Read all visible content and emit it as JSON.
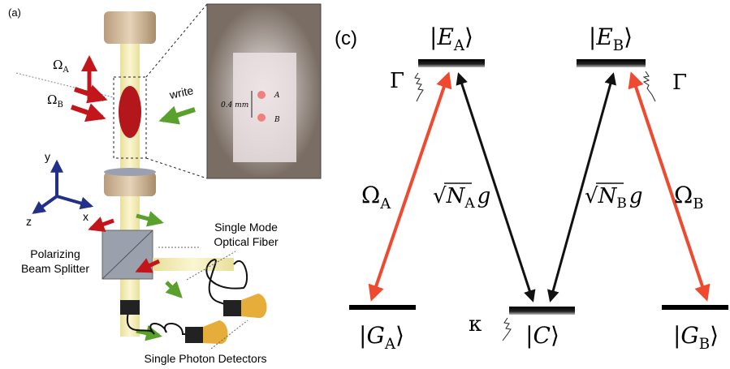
{
  "panel_a": {
    "label": "(a)",
    "omega_a": {
      "main": "Ω",
      "sub": "A"
    },
    "omega_b": {
      "main": "Ω",
      "sub": "B"
    },
    "write": "write",
    "scale": "0.4 mm",
    "site_a": "A",
    "site_b": "B",
    "axes": {
      "y": "y",
      "z": "z",
      "x": "x"
    },
    "fiber_label": [
      "Single Mode",
      "Optical Fiber"
    ],
    "splitter_label": [
      "Polarizing",
      "Beam Splitter"
    ],
    "detector_label": "Single Photon Detectors"
  },
  "panel_c": {
    "label": "(c)",
    "levels": [
      {
        "open": "|",
        "main": "E",
        "sub": "A",
        "close": "⟩"
      },
      {
        "open": "|",
        "main": "E",
        "sub": "B",
        "close": "⟩"
      },
      {
        "open": "|",
        "main": "G",
        "sub": "A",
        "close": "⟩"
      },
      {
        "open": "|",
        "main": "C",
        "sub": "",
        "close": "⟩"
      },
      {
        "open": "|",
        "main": "G",
        "sub": "B",
        "close": "⟩"
      }
    ],
    "decays": [
      "Γ",
      "Γ",
      "κ"
    ],
    "drives": [
      {
        "main": "Ω",
        "sub": "A"
      },
      {
        "main": "Ω",
        "sub": "B"
      }
    ],
    "couplings": [
      {
        "root": "√",
        "main": "N",
        "sub": "A",
        "factor": "g"
      },
      {
        "root": "√",
        "main": "N",
        "sub": "B",
        "factor": "g"
      }
    ]
  }
}
